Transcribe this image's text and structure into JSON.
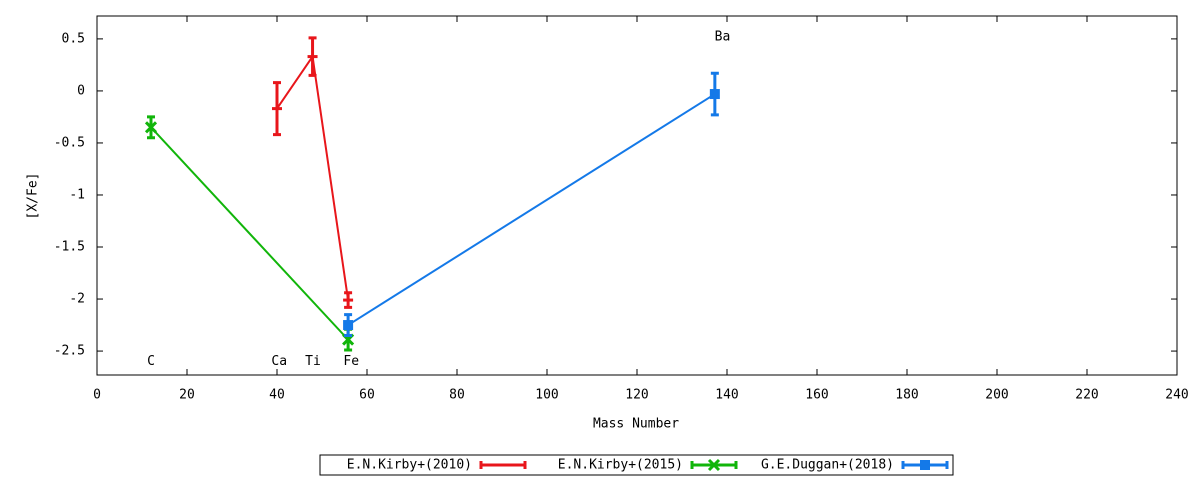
{
  "chart_data": {
    "type": "errorbar-line",
    "xlabel": "Mass Number",
    "ylabel": "[X/Fe]",
    "xlim": [
      0,
      240
    ],
    "ylim": [
      -2.73,
      0.72
    ],
    "xticks": [
      0,
      20,
      40,
      60,
      80,
      100,
      120,
      140,
      160,
      180,
      200,
      220,
      240
    ],
    "yticks": [
      0.5,
      0,
      -0.5,
      -1,
      -1.5,
      -2,
      -2.5
    ],
    "series": [
      {
        "name": "E.N.Kirby+(2010)",
        "color": "#e8161b",
        "marker": "plus",
        "x": [
          40,
          47.9,
          55.8
        ],
        "values": [
          -0.17,
          0.33,
          -2.01
        ],
        "errors": [
          0.25,
          0.18,
          0.07
        ]
      },
      {
        "name": "E.N.Kirby+(2015)",
        "color": "#11b50a",
        "marker": "cross",
        "x": [
          12,
          55.8
        ],
        "values": [
          -0.35,
          -2.39
        ],
        "errors": [
          0.1,
          0.1
        ]
      },
      {
        "name": "G.E.Duggan+(2018)",
        "color": "#1479e8",
        "marker": "square",
        "x": [
          55.8,
          137.3
        ],
        "values": [
          -2.25,
          -0.03
        ],
        "errors": [
          0.1,
          0.2
        ]
      }
    ],
    "annotations": [
      {
        "text": "C",
        "x": 12,
        "y": -2.6
      },
      {
        "text": "Ca",
        "x": 40.5,
        "y": -2.6
      },
      {
        "text": "Ti",
        "x": 48,
        "y": -2.6
      },
      {
        "text": "Fe",
        "x": 56.5,
        "y": -2.6
      },
      {
        "text": "Ba",
        "x": 139,
        "y": 0.52
      }
    ]
  }
}
